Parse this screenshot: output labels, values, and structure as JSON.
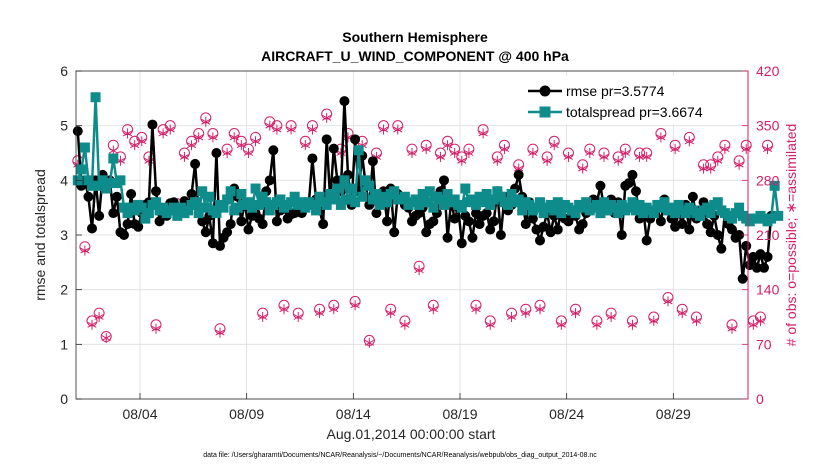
{
  "chart_data": {
    "type": "line",
    "title": "Southern Hemisphere",
    "subtitle": "AIRCRAFT_U_WIND_COMPONENT @ 400 hPa",
    "xlabel": "Aug.01,2014 00:00:00 start",
    "ylabel": "rmse and totalspread",
    "y2label": "# of obs: o=possible; ∗=assimilated",
    "xlim": [
      1,
      32.5
    ],
    "ylim": [
      0,
      6
    ],
    "y2lim": [
      0,
      420
    ],
    "x_ticks": [
      4,
      9,
      14,
      19,
      24,
      29
    ],
    "x_tick_labels": [
      "08/04",
      "08/09",
      "08/14",
      "08/19",
      "08/24",
      "08/29"
    ],
    "y_ticks": [
      0,
      1,
      2,
      3,
      4,
      5,
      6
    ],
    "y2_ticks": [
      0,
      70,
      140,
      210,
      280,
      350,
      420
    ],
    "grid": true,
    "legend_position": "top-right",
    "series": [
      {
        "name": "rmse pr=3.5774",
        "color": "#000000",
        "marker": "circle",
        "axis": "left",
        "values": [
          4.9,
          3.9,
          4.0,
          3.7,
          3.12,
          4.0,
          3.35,
          4.1,
          3.95,
          4.0,
          3.4,
          3.7,
          3.05,
          3.0,
          3.2,
          3.75,
          3.2,
          3.15,
          3.4,
          3.55,
          3.6,
          5.02,
          3.8,
          3.25,
          3.42,
          3.35,
          3.58,
          3.6,
          3.45,
          3.5,
          3.62,
          3.55,
          3.75,
          4.3,
          3.4,
          3.25,
          3.05,
          3.35,
          2.85,
          4.5,
          2.8,
          2.95,
          3.05,
          3.2,
          3.85,
          3.7,
          3.25,
          3.6,
          3.1,
          3.35,
          3.4,
          3.3,
          3.2,
          3.8,
          4.0,
          4.55,
          3.25,
          3.45,
          3.5,
          3.3,
          3.38,
          3.4,
          3.5,
          3.4,
          3.55,
          3.6,
          4.4,
          3.65,
          3.45,
          3.2,
          4.75,
          3.65,
          4.58,
          4.0,
          3.8,
          5.45,
          4.1,
          3.55,
          4.75,
          3.8,
          4.45,
          3.9,
          3.55,
          4.35,
          3.4,
          3.6,
          3.8,
          3.25,
          3.85,
          3.05,
          3.75,
          3.7,
          3.55,
          3.5,
          3.25,
          3.35,
          3.4,
          3.5,
          3.05,
          3.2,
          3.25,
          3.4,
          3.8,
          4.0,
          2.95,
          3.6,
          3.3,
          3.5,
          2.85,
          3.35,
          3.25,
          2.95,
          3.4,
          3.2,
          3.35,
          3.4,
          3.1,
          3.25,
          3.8,
          3.0,
          3.7,
          3.45,
          3.55,
          3.85,
          4.1,
          3.7,
          3.2,
          3.6,
          3.3,
          3.1,
          2.9,
          3.15,
          3.4,
          3.05,
          3.35,
          3.1,
          3.5,
          3.3,
          3.25,
          3.45,
          3.35,
          3.1,
          3.2,
          3.4,
          3.55,
          3.65,
          3.6,
          3.9,
          3.5,
          3.45,
          3.65,
          3.4,
          3.6,
          3.0,
          3.9,
          3.95,
          4.1,
          3.8,
          3.3,
          3.5,
          2.9,
          3.3,
          3.45,
          3.5,
          3.25,
          3.65,
          3.45,
          3.3,
          3.15,
          3.4,
          3.2,
          3.55,
          3.1,
          3.7,
          3.3,
          3.45,
          3.6,
          3.2,
          3.05,
          3.35,
          3.0,
          2.75,
          3.4,
          3.2,
          3.1,
          2.95,
          3.0,
          2.2,
          2.8,
          2.45,
          2.6,
          2.4,
          2.65,
          2.4,
          2.6,
          3.35
        ]
      },
      {
        "name": "totalspread pr=3.6674",
        "color": "#0e8c8c",
        "marker": "square",
        "axis": "left",
        "values": [
          4.0,
          4.2,
          4.6,
          4.0,
          3.9,
          5.52,
          3.9,
          4.0,
          3.85,
          3.95,
          4.4,
          3.95,
          4.0,
          3.5,
          3.4,
          3.5,
          3.45,
          3.55,
          3.5,
          3.3,
          3.4,
          3.55,
          3.6,
          3.45,
          3.5,
          3.4,
          3.45,
          3.5,
          3.35,
          3.5,
          3.4,
          3.45,
          3.55,
          3.6,
          3.4,
          3.8,
          3.5,
          3.7,
          3.45,
          3.4,
          3.55,
          3.5,
          3.65,
          3.8,
          3.45,
          3.5,
          3.75,
          3.55,
          3.6,
          3.5,
          3.85,
          3.55,
          3.7,
          3.6,
          3.45,
          3.55,
          3.6,
          3.65,
          3.5,
          3.55,
          3.6,
          3.7,
          3.55,
          3.6,
          3.5,
          3.6,
          3.55,
          3.45,
          3.7,
          3.6,
          3.55,
          3.75,
          3.65,
          3.85,
          3.55,
          4.0,
          3.65,
          3.85,
          3.6,
          4.55,
          3.7,
          4.0,
          3.9,
          3.65,
          3.75,
          3.55,
          3.7,
          3.6,
          3.75,
          3.8,
          3.65,
          3.65,
          3.7,
          3.55,
          3.6,
          3.65,
          3.55,
          3.75,
          3.6,
          3.8,
          3.5,
          3.7,
          3.65,
          3.55,
          3.75,
          3.6,
          3.65,
          3.55,
          3.5,
          3.85,
          3.6,
          3.65,
          3.55,
          3.7,
          3.6,
          3.75,
          3.55,
          3.65,
          3.8,
          3.7,
          3.6,
          3.55,
          3.75,
          3.6,
          3.65,
          3.45,
          3.6,
          3.55,
          3.45,
          3.5,
          3.6,
          3.4,
          3.5,
          3.55,
          3.45,
          3.6,
          3.4,
          3.55,
          3.5,
          3.45,
          3.4,
          3.55,
          3.5,
          3.6,
          3.45,
          3.5,
          3.55,
          3.4,
          3.6,
          3.45,
          3.55,
          3.5,
          3.4,
          3.55,
          3.45,
          3.5,
          3.6,
          3.45,
          3.55,
          3.4,
          3.5,
          3.45,
          3.4,
          3.55,
          3.5,
          3.6,
          3.45,
          3.5,
          3.4,
          3.55,
          3.45,
          3.4,
          3.5,
          3.45,
          3.4,
          3.35,
          3.45,
          3.5,
          3.4,
          3.55,
          3.6,
          3.45,
          3.4,
          3.35,
          3.3,
          3.4,
          3.5,
          3.35,
          3.3,
          3.25,
          3.3,
          3.3,
          3.35,
          3.3,
          3.25,
          3.3,
          3.9,
          3.35
        ]
      },
      {
        "name": "possible",
        "color": "#d61f69",
        "marker": "open-circle",
        "axis": "right",
        "values": [
          305,
          310,
          195,
          300,
          100,
          310,
          110,
          310,
          80,
          320,
          325,
          175,
          310,
          350,
          345,
          135,
          330,
          325,
          335,
          140,
          310,
          310,
          95,
          130,
          345,
          310,
          350,
          100,
          250,
          320,
          315,
          110,
          330,
          340,
          340,
          105,
          360,
          320,
          340,
          255,
          90,
          330,
          320,
          150,
          340,
          100,
          330,
          310,
          320,
          105,
          335,
          325,
          110,
          350,
          355,
          310,
          350,
          355,
          120,
          365,
          350,
          350,
          110,
          350,
          330,
          310,
          350,
          355,
          115,
          360,
          365,
          330,
          120,
          325,
          320,
          380,
          340,
          370,
          125,
          340,
          330,
          310,
          75,
          330,
          315,
          300,
          350,
          305,
          115,
          310,
          350,
          305,
          100,
          305,
          320,
          310,
          170,
          315,
          325,
          305,
          120,
          310,
          315,
          310,
          330,
          130,
          320,
          320,
          310,
          130,
          320,
          335,
          120,
          320,
          345,
          325,
          100,
          300,
          310,
          325,
          325,
          310,
          110,
          310,
          300,
          310,
          115,
          315,
          320,
          315,
          120,
          325,
          310,
          305,
          330,
          320,
          100,
          310,
          315,
          300,
          115,
          310,
          300,
          305,
          320,
          310,
          100,
          305,
          315,
          300,
          110,
          305,
          310,
          310,
          320,
          305,
          100,
          330,
          315,
          330,
          315,
          300,
          105,
          310,
          340,
          320,
          130,
          320,
          325,
          315,
          115,
          330,
          335,
          315,
          105,
          310,
          300,
          320,
          300,
          110,
          310,
          300,
          325,
          295,
          95,
          300,
          305,
          300,
          325,
          350,
          100,
          345,
          105,
          325,
          325
        ]
      },
      {
        "name": "assimilated",
        "color": "#d61f69",
        "marker": "asterisk",
        "axis": "right",
        "values": [
          300,
          305,
          190,
          295,
          95,
          305,
          105,
          305,
          78,
          315,
          318,
          170,
          305,
          345,
          340,
          130,
          325,
          320,
          330,
          135,
          305,
          305,
          90,
          125,
          340,
          305,
          345,
          96,
          245,
          315,
          310,
          105,
          325,
          335,
          335,
          100,
          355,
          315,
          335,
          250,
          85,
          325,
          315,
          145,
          335,
          95,
          325,
          305,
          315,
          100,
          330,
          320,
          105,
          345,
          350,
          305,
          345,
          350,
          115,
          360,
          345,
          345,
          105,
          345,
          325,
          305,
          345,
          350,
          110,
          355,
          360,
          325,
          115,
          320,
          315,
          375,
          335,
          365,
          120,
          335,
          325,
          305,
          72,
          325,
          310,
          295,
          345,
          300,
          110,
          305,
          345,
          300,
          95,
          300,
          315,
          305,
          165,
          310,
          320,
          300,
          115,
          305,
          310,
          305,
          325,
          125,
          315,
          315,
          305,
          125,
          315,
          330,
          115,
          315,
          340,
          320,
          95,
          295,
          305,
          320,
          320,
          305,
          105,
          305,
          295,
          305,
          110,
          310,
          315,
          310,
          115,
          320,
          305,
          300,
          325,
          315,
          95,
          305,
          310,
          295,
          110,
          305,
          295,
          300,
          315,
          305,
          95,
          300,
          310,
          295,
          105,
          300,
          305,
          305,
          315,
          300,
          95,
          325,
          310,
          325,
          310,
          295,
          100,
          305,
          335,
          315,
          125,
          315,
          320,
          310,
          110,
          325,
          330,
          310,
          100,
          305,
          295,
          315,
          295,
          105,
          305,
          295,
          320,
          290,
          90,
          295,
          300,
          295,
          320,
          345,
          95,
          340,
          100,
          320,
          320
        ]
      }
    ],
    "footnote": "data file: /Users/gharamti/Documents/NCAR/Reanalysis/~/Documents/NCAR/Reanalysis/webpub/obs_diag_output_2014-08.nc"
  }
}
